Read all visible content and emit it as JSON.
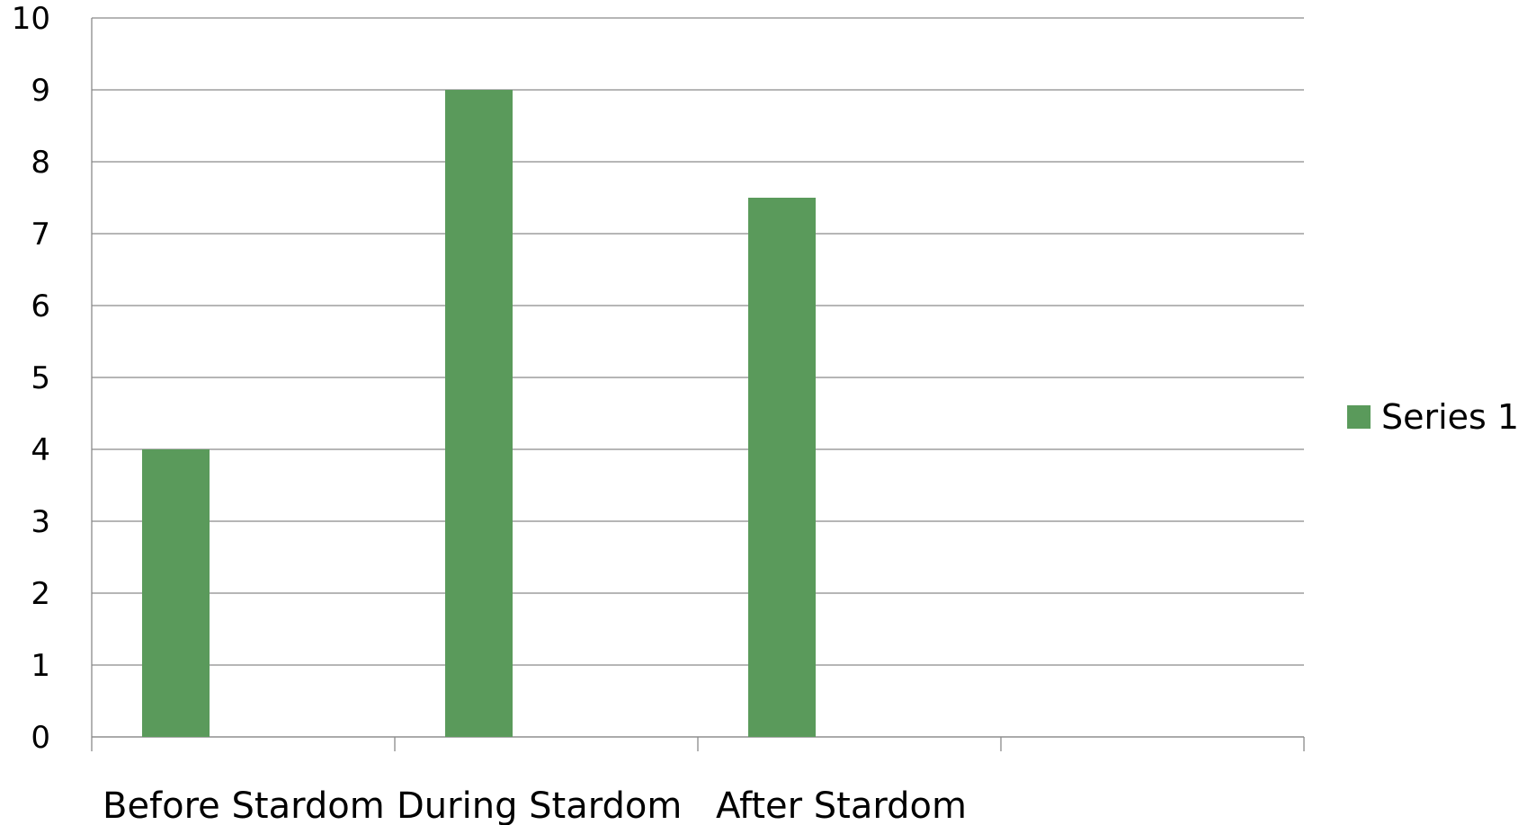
{
  "colors": {
    "series": "#5a9a5b",
    "grid": "#8a8a8a",
    "axis": "#8a8a8a"
  },
  "legend": {
    "position": "right",
    "label": "Series 1"
  },
  "chart_data": {
    "type": "bar",
    "categories": [
      "Before Stardom",
      "During Stardom",
      "After Stardom",
      ""
    ],
    "series": [
      {
        "name": "Series 1",
        "values": [
          4,
          9,
          7.5,
          null
        ]
      }
    ],
    "ylim": [
      0,
      10
    ],
    "yticks": [
      0,
      1,
      2,
      3,
      4,
      5,
      6,
      7,
      8,
      9,
      10
    ],
    "grid": true,
    "title": "",
    "xlabel": "",
    "ylabel": ""
  }
}
